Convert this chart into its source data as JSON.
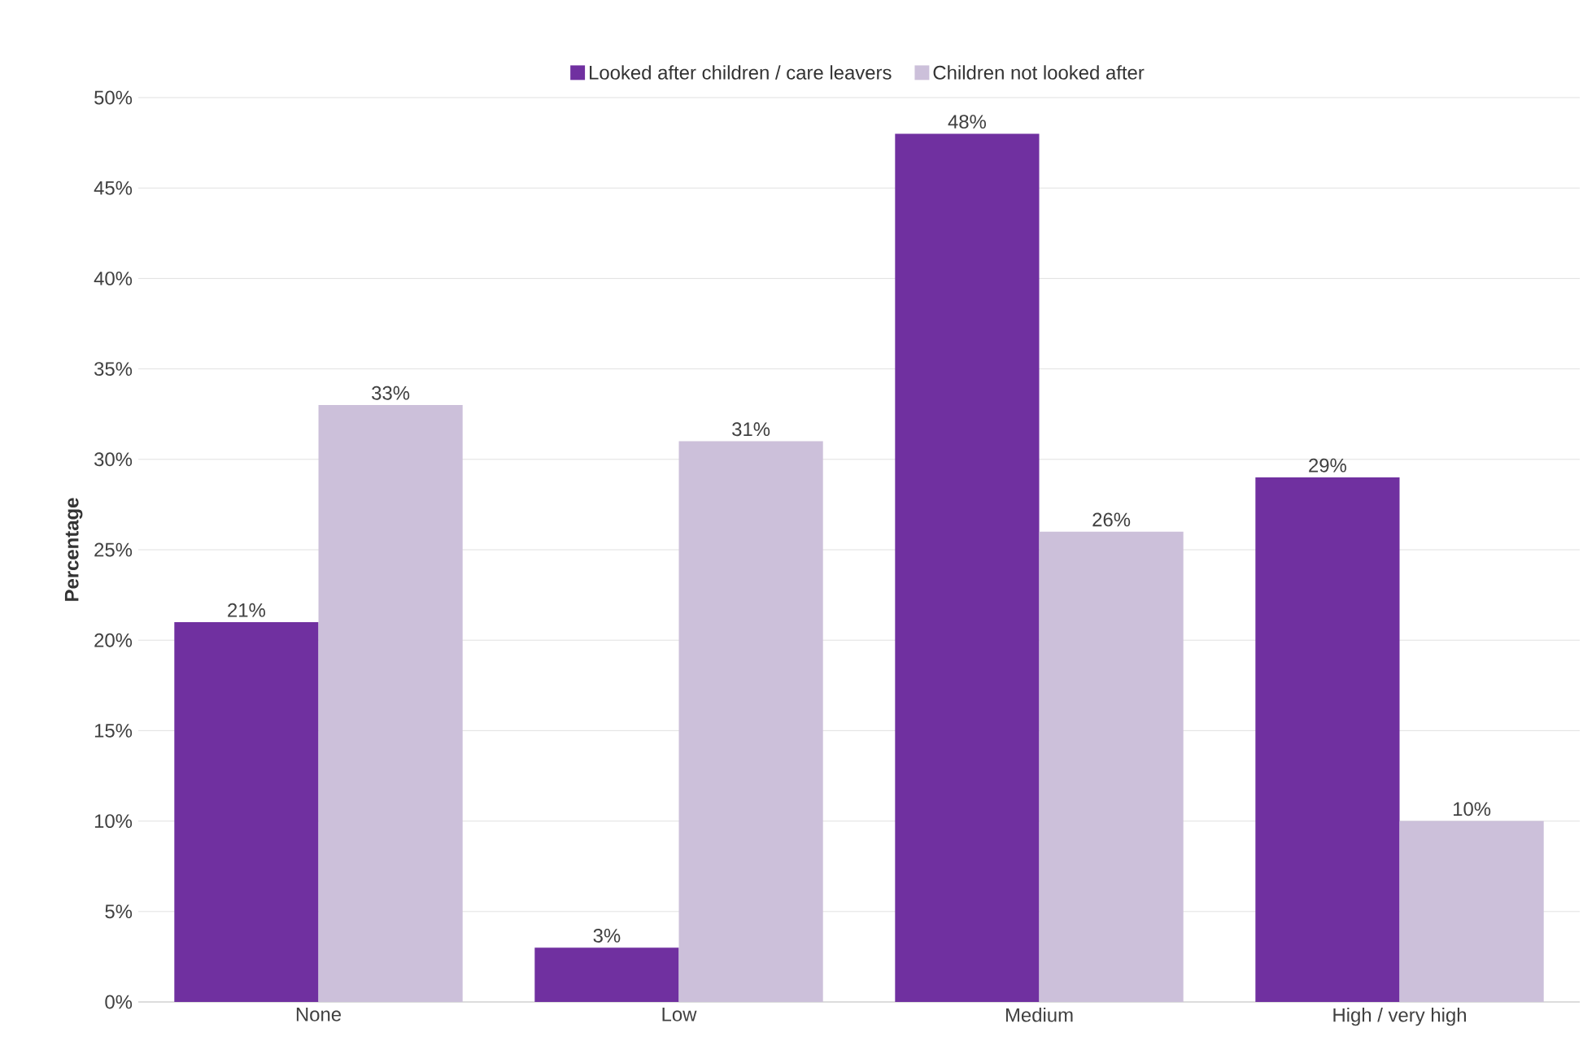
{
  "chart_data": {
    "type": "bar",
    "ylabel": "Percentage",
    "categories": [
      "None",
      "Low",
      "Medium",
      "High / very high"
    ],
    "series": [
      {
        "name": "Looked after children / care leavers",
        "color": "#7030a0",
        "values": [
          21,
          3,
          48,
          29
        ],
        "value_labels": [
          "21%",
          "3%",
          "48%",
          "29%"
        ]
      },
      {
        "name": "Children not looked after",
        "color": "#ccc0da",
        "values": [
          33,
          31,
          26,
          10
        ],
        "value_labels": [
          "33%",
          "31%",
          "26%",
          "10%"
        ]
      }
    ],
    "ylim": [
      0,
      50
    ],
    "yticks": [
      {
        "value": 0,
        "label": "0%"
      },
      {
        "value": 5,
        "label": "5%"
      },
      {
        "value": 10,
        "label": "10%"
      },
      {
        "value": 15,
        "label": "15%"
      },
      {
        "value": 20,
        "label": "20%"
      },
      {
        "value": 25,
        "label": "25%"
      },
      {
        "value": 30,
        "label": "30%"
      },
      {
        "value": 35,
        "label": "35%"
      },
      {
        "value": 40,
        "label": "40%"
      },
      {
        "value": 45,
        "label": "45%"
      },
      {
        "value": 50,
        "label": "50%"
      }
    ],
    "grid": "y",
    "legend": "top"
  }
}
